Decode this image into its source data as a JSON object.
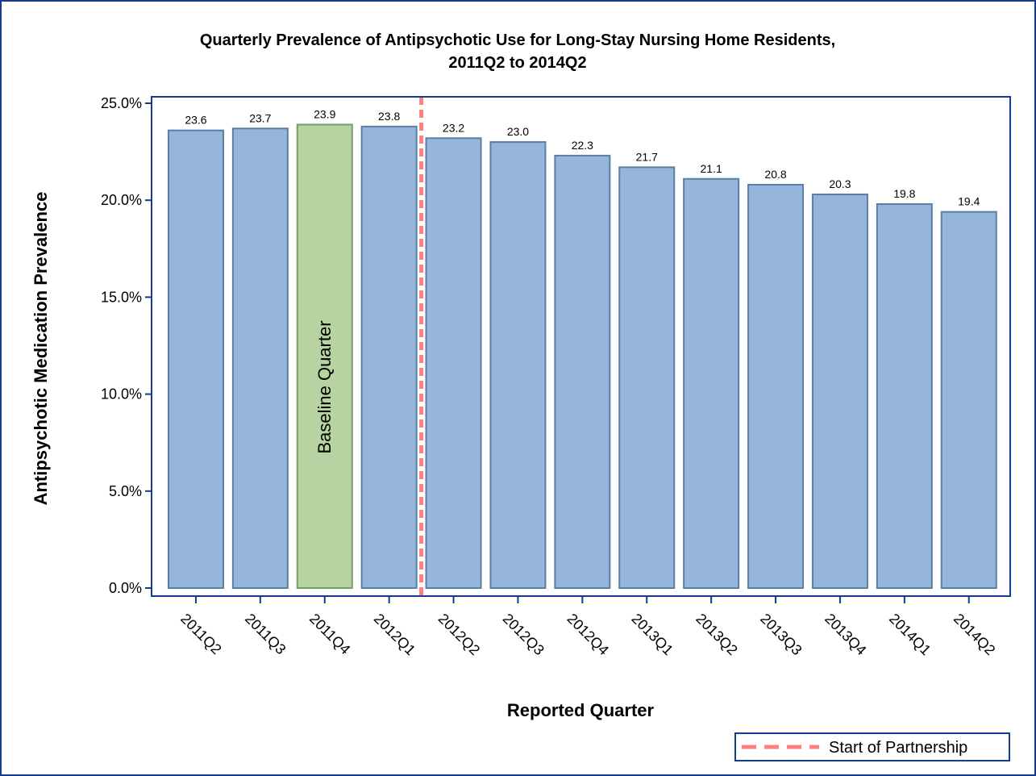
{
  "chart_data": {
    "type": "bar",
    "title": [
      "Quarterly Prevalence of Antipsychotic Use for Long-Stay Nursing Home Residents,",
      "2011Q2 to 2014Q2"
    ],
    "x_label": "Reported Quarter",
    "y_label": "Antipsychotic Medication Prevalence",
    "categories": [
      "2011Q2",
      "2011Q3",
      "2011Q4",
      "2012Q1",
      "2012Q2",
      "2012Q3",
      "2012Q4",
      "2013Q1",
      "2013Q2",
      "2013Q3",
      "2013Q4",
      "2014Q1",
      "2014Q2"
    ],
    "values": [
      23.6,
      23.7,
      23.9,
      23.8,
      23.2,
      23.0,
      22.3,
      21.7,
      21.1,
      20.8,
      20.3,
      19.8,
      19.4
    ],
    "value_labels": [
      "23.6",
      "23.7",
      "23.9",
      "23.8",
      "23.2",
      "23.0",
      "22.3",
      "21.7",
      "21.1",
      "20.8",
      "20.3",
      "19.8",
      "19.4"
    ],
    "color": "#96b5da",
    "highlight": {
      "index": 2,
      "color": "#b7d3a2",
      "label": "Baseline Quarter"
    },
    "reference_line": {
      "position": 3.5,
      "label": "Start of Partnership",
      "color": "#ff8080"
    },
    "ylim": [
      0,
      25
    ],
    "yticks": [
      {
        "value": 0,
        "label": "0.0%"
      },
      {
        "value": 5,
        "label": "5.0%"
      },
      {
        "value": 10,
        "label": "10.0%"
      },
      {
        "value": 15,
        "label": "15.0%"
      },
      {
        "value": 20,
        "label": "20.0%"
      },
      {
        "value": 25,
        "label": "25.0%"
      }
    ],
    "legend": "bottom-right"
  }
}
